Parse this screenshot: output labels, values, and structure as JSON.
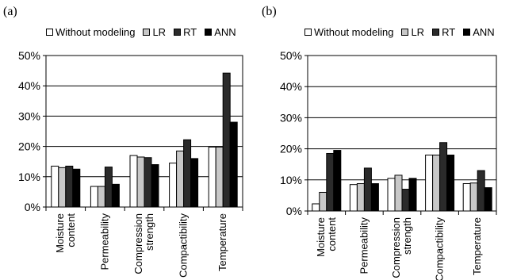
{
  "chart_data": [
    {
      "type": "bar",
      "panel_label": "(a)",
      "categories": [
        "Moisture content",
        "Permeability",
        "Compression strength",
        "Compactibility",
        "Temperature"
      ],
      "series": [
        {
          "name": "Without modeling",
          "values": [
            13.5,
            6.8,
            17,
            14.5,
            19.8
          ],
          "color": "#ffffff"
        },
        {
          "name": "LR",
          "values": [
            13,
            6.8,
            16.5,
            18.5,
            19.8
          ],
          "color": "#c8c8c8"
        },
        {
          "name": "RT",
          "values": [
            13.5,
            13.2,
            16.3,
            22.2,
            44.2
          ],
          "color": "#2b2b2b"
        },
        {
          "name": "ANN",
          "values": [
            12.5,
            7.5,
            14,
            16,
            28
          ],
          "color": "#000000"
        }
      ],
      "ylim": [
        0,
        50
      ],
      "yticks": [
        "0%",
        "10%",
        "20%",
        "30%",
        "40%",
        "50%"
      ],
      "grid": true,
      "legend_position": "top"
    },
    {
      "type": "bar",
      "panel_label": "(b)",
      "categories": [
        "Moisture content",
        "Permeability",
        "Compression strength",
        "Compactibility",
        "Temperature"
      ],
      "series": [
        {
          "name": "Without modeling",
          "values": [
            2.3,
            8.5,
            10.5,
            18,
            8.8
          ],
          "color": "#ffffff"
        },
        {
          "name": "LR",
          "values": [
            6,
            8.8,
            11.5,
            18,
            9
          ],
          "color": "#c8c8c8"
        },
        {
          "name": "RT",
          "values": [
            18.5,
            13.8,
            7,
            22,
            13
          ],
          "color": "#2b2b2b"
        },
        {
          "name": "ANN",
          "values": [
            19.5,
            8.8,
            10.5,
            18,
            7.5
          ],
          "color": "#000000"
        }
      ],
      "ylim": [
        0,
        50
      ],
      "yticks": [
        "0%",
        "10%",
        "20%",
        "30%",
        "40%",
        "50%"
      ],
      "grid": true,
      "legend_position": "top"
    }
  ]
}
